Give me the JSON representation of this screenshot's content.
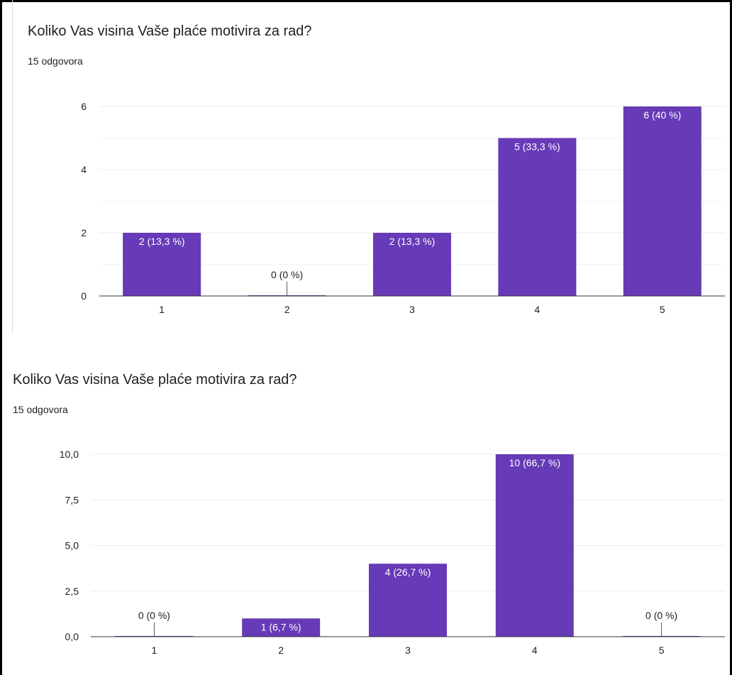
{
  "colors": {
    "bar": "#673ab7",
    "grid": "#ebebeb",
    "axis": "#333333",
    "text": "#202124",
    "bar_label": "#ffffff"
  },
  "chart_data": [
    {
      "type": "bar",
      "title": "Koliko Vas visina Vaše plaće motivira za rad?",
      "subtitle": "15 odgovora",
      "categories": [
        "1",
        "2",
        "3",
        "4",
        "5"
      ],
      "values": [
        2,
        0,
        2,
        5,
        6
      ],
      "data_labels": [
        "2 (13,3 %)",
        "0 (0 %)",
        "2 (13,3 %)",
        "5 (33,3 %)",
        "6 (40 %)"
      ],
      "ylim": [
        0,
        6
      ],
      "yticks": [
        0,
        2,
        4,
        6
      ],
      "ytick_labels": [
        "0",
        "2",
        "4",
        "6"
      ],
      "minor_gridlines": true,
      "grid": true,
      "legend": "none"
    },
    {
      "type": "bar",
      "title": "Koliko Vas visina Vaše plaće motivira za rad?",
      "subtitle": "15 odgovora",
      "categories": [
        "1",
        "2",
        "3",
        "4",
        "5"
      ],
      "values": [
        0,
        1,
        4,
        10,
        0
      ],
      "data_labels": [
        "0 (0 %)",
        "1 (6,7 %)",
        "4 (26,7 %)",
        "10 (66,7 %)",
        "0 (0 %)"
      ],
      "ylim": [
        0,
        10
      ],
      "yticks": [
        0,
        2.5,
        5,
        7.5,
        10
      ],
      "ytick_labels": [
        "0,0",
        "2,5",
        "5,0",
        "7,5",
        "10,0"
      ],
      "minor_gridlines": false,
      "grid": true,
      "legend": "none"
    }
  ]
}
